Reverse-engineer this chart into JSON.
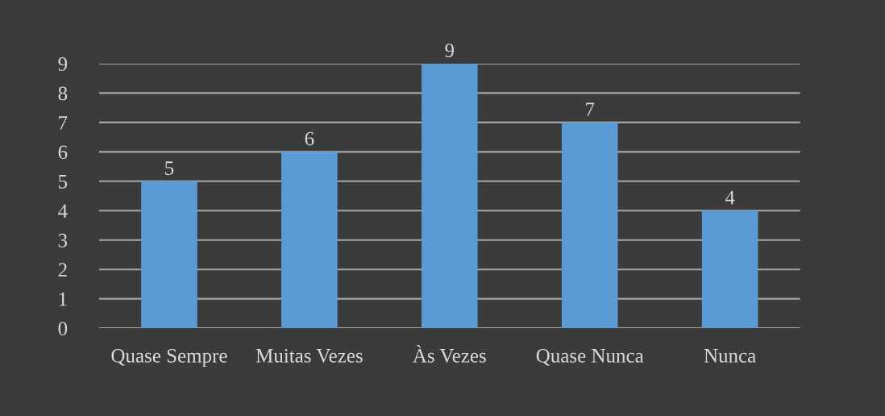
{
  "chart_data": {
    "type": "bar",
    "categories": [
      "Quase Sempre",
      "Muitas Vezes",
      "Às Vezes",
      "Quase Nunca",
      "Nunca"
    ],
    "values": [
      5,
      6,
      9,
      7,
      4
    ],
    "color": "#5b9bd5",
    "ylim": [
      0,
      9
    ],
    "yticks": [
      0,
      1,
      2,
      3,
      4,
      5,
      6,
      7,
      8,
      9
    ],
    "grid": "y",
    "data_labels": true
  }
}
